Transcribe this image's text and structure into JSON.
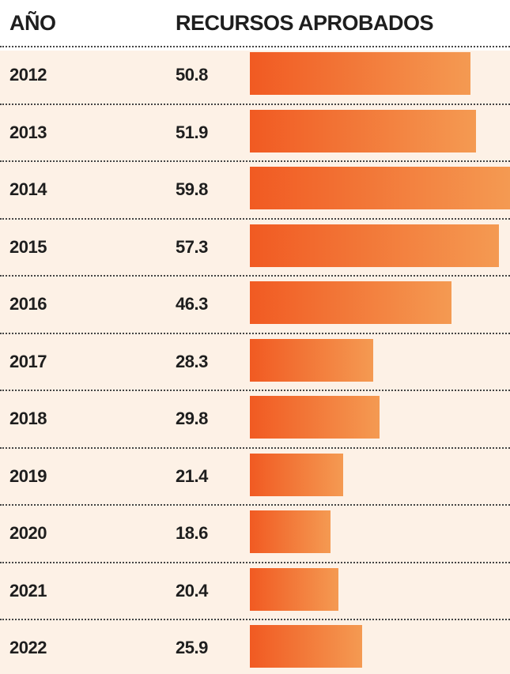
{
  "header": {
    "year_label": "AÑO",
    "resources_label": "RECURSOS APROBADOS"
  },
  "colors": {
    "bar_start": "#f15a22",
    "bar_end": "#f49a52",
    "background": "#fdf1e6"
  },
  "chart_data": {
    "type": "bar",
    "orientation": "horizontal",
    "categories": [
      "2012",
      "2013",
      "2014",
      "2015",
      "2016",
      "2017",
      "2018",
      "2019",
      "2020",
      "2021",
      "2022"
    ],
    "values": [
      50.8,
      51.9,
      59.8,
      57.3,
      46.3,
      28.3,
      29.8,
      21.4,
      18.6,
      20.4,
      25.9
    ],
    "value_labels": [
      "50.8",
      "51.9",
      "59.8",
      "57.3",
      "46.3",
      "28.3",
      "29.8",
      "21.4",
      "18.6",
      "20.4",
      "25.9"
    ],
    "xlim": [
      0,
      59.8
    ]
  }
}
